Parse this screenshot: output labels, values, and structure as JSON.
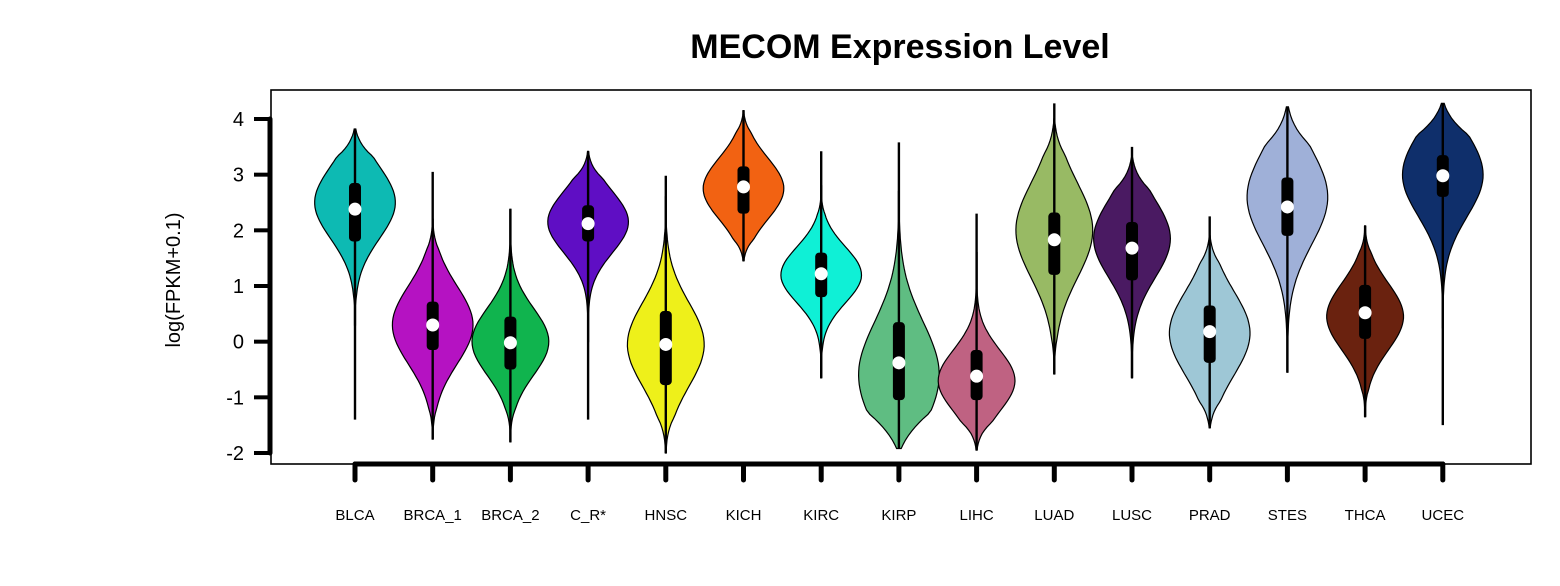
{
  "chart_data": {
    "type": "violin",
    "title": "MECOM Expression Level",
    "xlabel": "",
    "ylabel": "log(FPKM+0.1)",
    "ylim": [
      -2.15,
      4.25
    ],
    "yticks": [
      4,
      3,
      2,
      1,
      0,
      -1,
      -2
    ],
    "grid": false,
    "categories": [
      "BLCA",
      "BRCA_1",
      "BRCA_2",
      "C_R*",
      "HNSC",
      "KICH",
      "KIRC",
      "KIRP",
      "LIHC",
      "LUAD",
      "LUSC",
      "PRAD",
      "STES",
      "THCA",
      "UCEC"
    ],
    "series": [
      {
        "category": "BLCA",
        "color": "#0dbab3",
        "min": -1.4,
        "q1": 1.8,
        "median": 2.38,
        "q3": 2.85,
        "max": 3.82,
        "vmin": 0.3,
        "vmax": 3.82,
        "width": 0.42,
        "mode": 2.5,
        "spread": 0.65
      },
      {
        "category": "BRCA_1",
        "color": "#b512c2",
        "min": -1.75,
        "q1": -0.15,
        "median": 0.3,
        "q3": 0.72,
        "max": 3.05,
        "vmin": -1.75,
        "vmax": 2.2,
        "width": 0.42,
        "mode": 0.3,
        "spread": 0.7
      },
      {
        "category": "BRCA_2",
        "color": "#10b44e",
        "min": -1.8,
        "q1": -0.5,
        "median": -0.02,
        "q3": 0.45,
        "max": 2.38,
        "vmin": -1.8,
        "vmax": 2.38,
        "width": 0.4,
        "mode": 0.0,
        "spread": 0.6
      },
      {
        "category": "C_R*",
        "color": "#5f0ec4",
        "min": -1.4,
        "q1": 1.8,
        "median": 2.12,
        "q3": 2.45,
        "max": 3.42,
        "vmin": 0.0,
        "vmax": 3.42,
        "width": 0.42,
        "mode": 2.15,
        "spread": 0.55
      },
      {
        "category": "HNSC",
        "color": "#eef01a",
        "min": -2.0,
        "q1": -0.78,
        "median": -0.05,
        "q3": 0.55,
        "max": 2.98,
        "vmin": -2.0,
        "vmax": 2.6,
        "width": 0.4,
        "mode": -0.05,
        "spread": 0.75
      },
      {
        "category": "KICH",
        "color": "#f26212",
        "min": 1.45,
        "q1": 2.3,
        "median": 2.78,
        "q3": 3.15,
        "max": 4.15,
        "vmin": 1.45,
        "vmax": 4.15,
        "width": 0.42,
        "mode": 2.75,
        "spread": 0.55
      },
      {
        "category": "KIRC",
        "color": "#0ff0d6",
        "min": -0.65,
        "q1": 0.8,
        "median": 1.22,
        "q3": 1.6,
        "max": 3.42,
        "vmin": -0.65,
        "vmax": 2.8,
        "width": 0.42,
        "mode": 1.2,
        "spread": 0.5
      },
      {
        "category": "KIRP",
        "color": "#5fbd82",
        "min": -1.92,
        "q1": -1.05,
        "median": -0.38,
        "q3": 0.35,
        "max": 3.58,
        "vmin": -1.92,
        "vmax": 2.7,
        "width": 0.42,
        "mode": -0.6,
        "spread": 0.95
      },
      {
        "category": "LIHC",
        "color": "#bf6282",
        "min": -1.95,
        "q1": -1.05,
        "median": -0.62,
        "q3": -0.15,
        "max": 2.3,
        "vmin": -1.95,
        "vmax": 1.6,
        "width": 0.4,
        "mode": -0.7,
        "spread": 0.55
      },
      {
        "category": "LUAD",
        "color": "#98ba64",
        "min": -0.58,
        "q1": 1.2,
        "median": 1.83,
        "q3": 2.32,
        "max": 4.28,
        "vmin": -0.58,
        "vmax": 4.0,
        "width": 0.4,
        "mode": 2.0,
        "spread": 0.85
      },
      {
        "category": "LUSC",
        "color": "#4a1a62",
        "min": -0.65,
        "q1": 1.1,
        "median": 1.68,
        "q3": 2.15,
        "max": 3.5,
        "vmin": -0.65,
        "vmax": 3.3,
        "width": 0.4,
        "mode": 1.85,
        "spread": 0.7
      },
      {
        "category": "PRAD",
        "color": "#9ec7d6",
        "min": -1.55,
        "q1": -0.38,
        "median": 0.18,
        "q3": 0.65,
        "max": 2.25,
        "vmin": -1.55,
        "vmax": 1.9,
        "width": 0.42,
        "mode": 0.15,
        "spread": 0.75
      },
      {
        "category": "STES",
        "color": "#9fb0d8",
        "min": -0.55,
        "q1": 1.9,
        "median": 2.42,
        "q3": 2.95,
        "max": 4.22,
        "vmin": -0.55,
        "vmax": 4.22,
        "width": 0.42,
        "mode": 2.6,
        "spread": 0.85
      },
      {
        "category": "THCA",
        "color": "#6a220f",
        "min": -1.35,
        "q1": 0.05,
        "median": 0.52,
        "q3": 1.02,
        "max": 2.08,
        "vmin": -1.35,
        "vmax": 2.08,
        "width": 0.4,
        "mode": 0.45,
        "spread": 0.6
      },
      {
        "category": "UCEC",
        "color": "#0f2f6b",
        "min": -1.5,
        "q1": 2.6,
        "median": 2.98,
        "q3": 3.35,
        "max": 4.28,
        "vmin": 0.25,
        "vmax": 4.28,
        "width": 0.42,
        "mode": 3.0,
        "spread": 0.75
      }
    ]
  }
}
